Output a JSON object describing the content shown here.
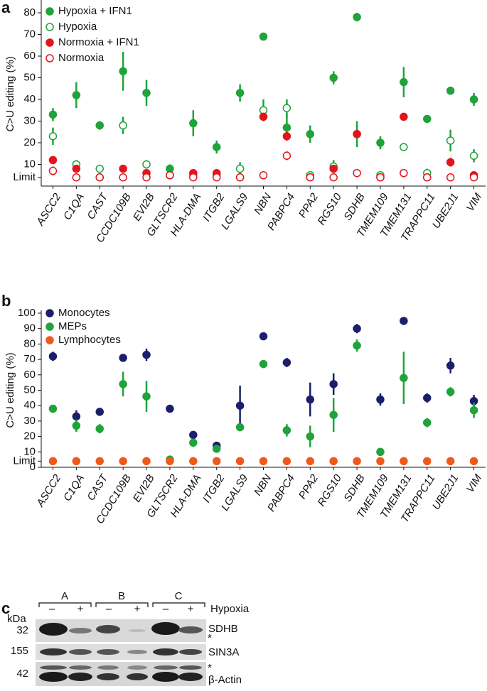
{
  "chart_data": [
    {
      "type": "dot",
      "panel": "a",
      "y_label": "C>U editing (%)",
      "categories": [
        "ASCC2",
        "C1QA",
        "CAST",
        "CCDC109B",
        "EVI2B",
        "GLTSCR2",
        "HLA-DMA",
        "ITGB2",
        "LGALS9",
        "NBN",
        "PABPC4",
        "PPA2",
        "RGS10",
        "SDHB",
        "TMEM109",
        "TMEM131",
        "TRAPPC11",
        "UBE2J1",
        "VIM"
      ],
      "ylim": [
        0,
        85
      ],
      "yticks": [
        {
          "value": 4,
          "label": "Limit"
        },
        10,
        20,
        30,
        40,
        50,
        60,
        70,
        80
      ],
      "series": [
        {
          "name": "Hypoxia + IFN1",
          "color": "#1fa33a",
          "marker": "filled",
          "values": [
            33,
            42,
            28,
            53,
            43,
            8,
            29,
            18,
            43,
            69,
            27,
            24,
            50,
            78,
            20,
            48,
            31,
            44,
            40
          ],
          "errors": [
            3,
            6,
            2,
            9,
            6,
            2,
            6,
            3,
            4,
            1,
            6,
            4,
            3,
            2,
            3,
            7,
            null,
            null,
            3
          ]
        },
        {
          "name": "Hypoxia",
          "color": "#1fa33a",
          "marker": "open",
          "values": [
            23,
            10,
            8,
            28,
            10,
            5,
            5,
            5,
            8,
            35,
            36,
            5,
            9,
            24,
            5,
            18,
            6,
            21,
            14
          ],
          "errors": [
            4,
            2,
            null,
            4,
            2,
            null,
            null,
            null,
            3,
            5,
            4,
            null,
            3,
            6,
            null,
            1,
            2,
            5,
            3
          ]
        },
        {
          "name": "Normoxia + IFN1",
          "color": "#e3141b",
          "marker": "filled",
          "values": [
            12,
            8,
            4,
            8,
            6,
            5,
            6,
            6,
            4,
            32,
            23,
            4,
            8,
            24,
            4,
            32,
            4,
            11,
            5
          ],
          "errors": [
            null,
            null,
            null,
            null,
            null,
            null,
            null,
            null,
            null,
            1,
            2,
            null,
            null,
            null,
            null,
            null,
            null,
            2,
            null
          ]
        },
        {
          "name": "Normoxia",
          "color": "#e3141b",
          "marker": "open",
          "values": [
            7,
            4,
            4,
            4,
            4,
            5,
            4,
            4,
            4,
            5,
            14,
            4,
            4,
            6,
            4,
            6,
            4,
            4,
            4
          ],
          "errors": [
            2,
            null,
            null,
            null,
            null,
            null,
            null,
            null,
            null,
            null,
            2,
            null,
            null,
            null,
            null,
            null,
            null,
            null,
            null
          ]
        }
      ]
    },
    {
      "type": "dot",
      "panel": "b",
      "y_label": "C>U editing (%)",
      "categories": [
        "ASCC2",
        "C1QA",
        "CAST",
        "CCDC109B",
        "EVI2B",
        "GLTSCR2",
        "HLA-DMA",
        "ITGB2",
        "LGALS9",
        "NBN",
        "PABPC4",
        "PPA2",
        "RGS10",
        "SDHB",
        "TMEM109",
        "TMEM131",
        "TRAPPC11",
        "UBE2J1",
        "VIM"
      ],
      "ylim": [
        0,
        100
      ],
      "yticks": [
        0,
        {
          "value": 4,
          "label": "Limit"
        },
        10,
        20,
        30,
        40,
        50,
        60,
        70,
        80,
        90,
        100
      ],
      "series": [
        {
          "name": "Monocytes",
          "color": "#1b1f6b",
          "marker": "filled",
          "values": [
            72,
            33,
            36,
            71,
            73,
            38,
            21,
            14,
            40,
            85,
            68,
            44,
            54,
            90,
            44,
            95,
            45,
            66,
            43
          ],
          "errors": [
            3,
            4,
            2,
            null,
            4,
            2,
            2,
            2,
            13,
            null,
            3,
            11,
            7,
            3,
            4,
            null,
            3,
            5,
            4
          ]
        },
        {
          "name": "MEPs",
          "color": "#1fa33a",
          "marker": "filled",
          "values": [
            38,
            27,
            25,
            54,
            46,
            5,
            16,
            12,
            26,
            67,
            24,
            20,
            34,
            79,
            10,
            58,
            29,
            49,
            37
          ],
          "errors": [
            2,
            4,
            3,
            8,
            10,
            null,
            null,
            null,
            null,
            null,
            4,
            7,
            11,
            4,
            null,
            17,
            3,
            3,
            5
          ]
        },
        {
          "name": "Lymphocytes",
          "color": "#ef5a1a",
          "marker": "filled",
          "values": [
            4,
            4,
            4,
            4,
            4,
            4,
            4,
            4,
            4,
            4,
            4,
            4,
            4,
            4,
            4,
            4,
            4,
            4,
            4
          ],
          "errors": [
            null,
            null,
            null,
            null,
            null,
            null,
            null,
            null,
            null,
            null,
            null,
            null,
            null,
            null,
            null,
            null,
            null,
            null,
            null
          ]
        }
      ]
    }
  ],
  "blot": {
    "panel": "c",
    "groups": [
      "A",
      "B",
      "C"
    ],
    "lanes": [
      "–",
      "+",
      "–",
      "+",
      "–",
      "+"
    ],
    "condition": "Hypoxia",
    "unit": "kDa",
    "markers": [
      "32",
      "155",
      "42"
    ],
    "proteins": [
      "SDHB",
      "SIN3A",
      "β-Actin"
    ],
    "asterisks": [
      "*",
      "*"
    ]
  }
}
